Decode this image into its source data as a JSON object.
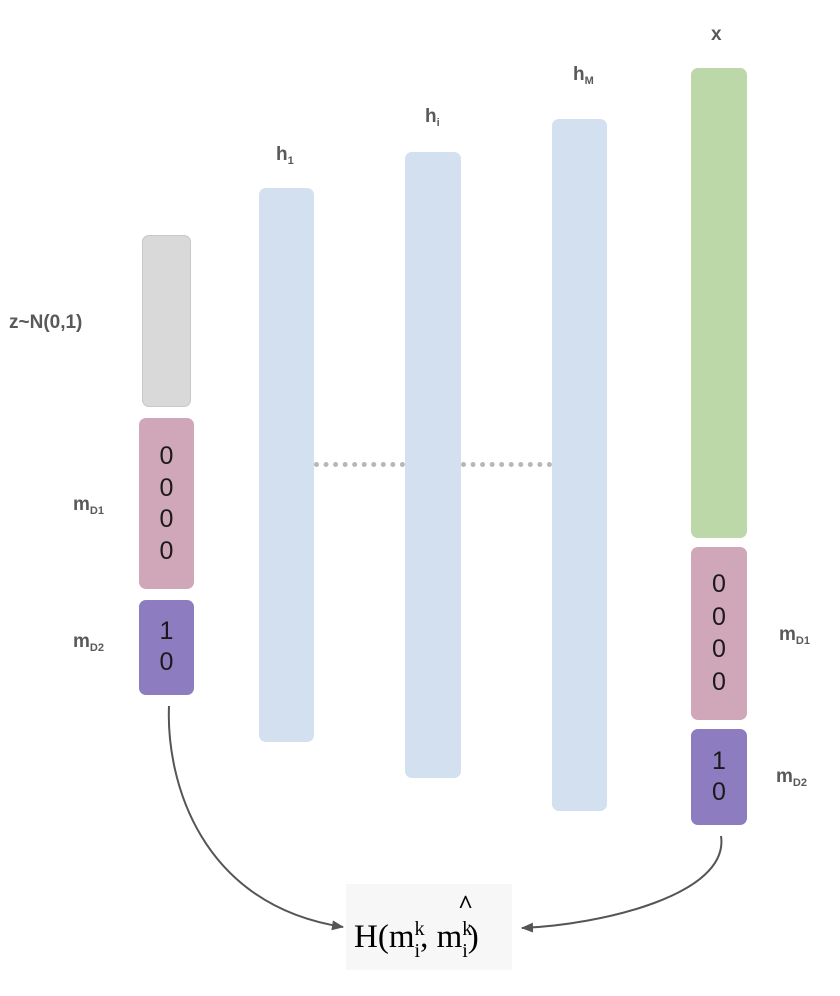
{
  "labels": {
    "z": "z~N(0,1)",
    "h1": {
      "base": "h",
      "sub": "1"
    },
    "hi": {
      "base": "h",
      "sub": "i"
    },
    "hM": {
      "base": "h",
      "sub": "M"
    },
    "x": "x",
    "mD1_left": {
      "base": "m",
      "sub": "D1"
    },
    "mD2_left": {
      "base": "m",
      "sub": "D2"
    },
    "mD1_right": {
      "base": "m",
      "sub": "D1"
    },
    "mD2_right": {
      "base": "m",
      "sub": "D2"
    }
  },
  "left_mD1_values": [
    "0",
    "0",
    "0",
    "0"
  ],
  "left_mD2_values": [
    "1",
    "0"
  ],
  "right_mD1_values": [
    "0",
    "0",
    "0",
    "0"
  ],
  "right_mD2_values": [
    "1",
    "0"
  ],
  "formula": {
    "open": "H(m",
    "sup1": "k",
    "sub1": "i",
    "comma": ", m",
    "sup2": "k",
    "sub2": "i",
    "close": ")",
    "hat": "^"
  },
  "colors": {
    "noise_box": "#d9d9d9",
    "hidden_layer": "#d3e0f0",
    "output_x": "#bcd7a8",
    "mD1_box": "#d0a7b8",
    "mD2_box": "#8e7cc0",
    "connector": "#555555",
    "dots": "#b7b7b7"
  }
}
